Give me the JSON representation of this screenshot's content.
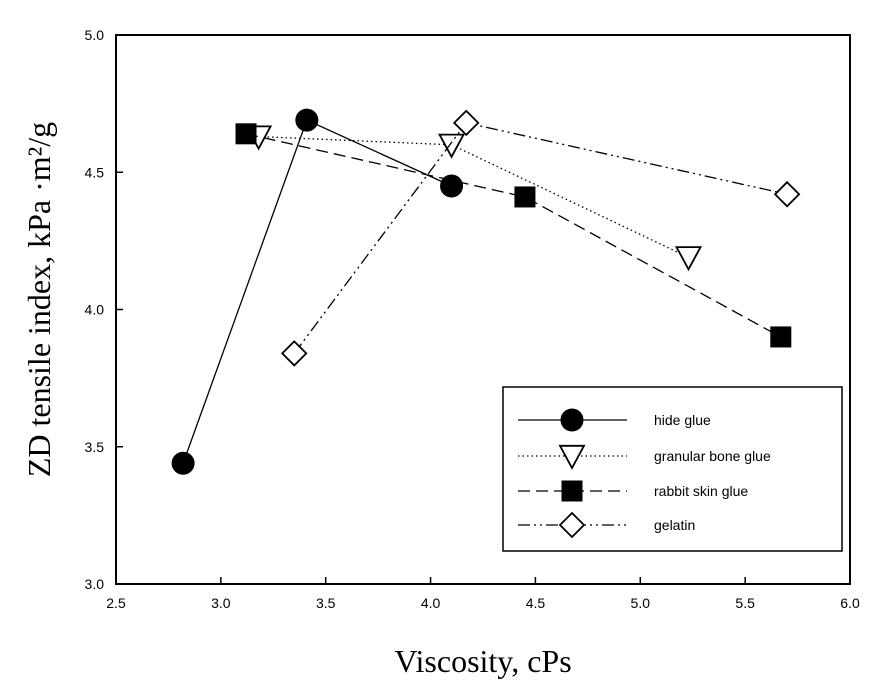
{
  "chart_data": {
    "type": "line",
    "xlabel": "Viscosity, cPs",
    "ylabel": "ZD tensile index, kPa ·m²/g",
    "xlim": [
      2.5,
      6.0
    ],
    "ylim": [
      3.0,
      5.0
    ],
    "xticks": [
      "2.5",
      "3.0",
      "3.5",
      "4.0",
      "4.5",
      "5.0",
      "5.5",
      "6.0"
    ],
    "yticks": [
      "3.0",
      "3.5",
      "4.0",
      "4.5",
      "5.0"
    ],
    "grid": false,
    "legend_position": "bottom-right",
    "series": [
      {
        "name": "hide glue",
        "line_style": "solid",
        "marker": "filled-circle",
        "x": [
          2.82,
          3.41,
          4.1
        ],
        "y": [
          3.44,
          4.69,
          4.45
        ]
      },
      {
        "name": "granular bone glue",
        "line_style": "dotted",
        "marker": "open-triangle-down",
        "x": [
          3.18,
          4.1,
          5.23
        ],
        "y": [
          4.63,
          4.6,
          4.19
        ]
      },
      {
        "name": "rabbit skin glue",
        "line_style": "dashed",
        "marker": "filled-square",
        "x": [
          3.12,
          4.45,
          5.67
        ],
        "y": [
          4.64,
          4.41,
          3.9
        ]
      },
      {
        "name": "gelatin",
        "line_style": "dash-dot-dot",
        "marker": "open-diamond",
        "x": [
          3.35,
          4.17,
          5.7
        ],
        "y": [
          3.84,
          4.68,
          4.42
        ]
      }
    ]
  }
}
